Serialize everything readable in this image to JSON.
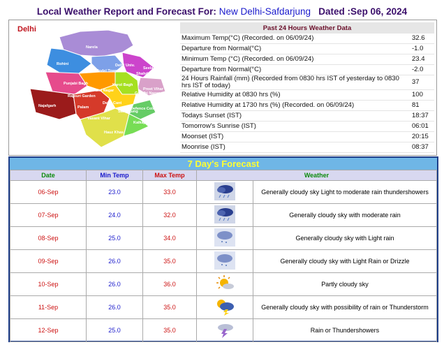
{
  "header": {
    "title": "Local Weather Report and Forecast For:",
    "station": "New Delhi-Safdarjung",
    "dated": "Dated :Sep 06, 2024"
  },
  "map": {
    "title": "Delhi",
    "labels": [
      "Narela",
      "Rohini",
      "Model Town",
      "Delhi Univ.",
      "Seelam Puri",
      "Shahdara",
      "Punjabi Bagh",
      "Karol Bagh",
      "Patel Nagar",
      "Gandhi Nagar",
      "Preet Vihar",
      "Rajouri Garden",
      "Delhi Cant",
      "Najafgarh",
      "Palam",
      "Vasant Vihar",
      "Defence Colony",
      "Safdarjung",
      "Kalkaji",
      "Hauz Khas"
    ]
  },
  "past": {
    "title": "Past 24 Hours Weather Data",
    "rows": [
      [
        "Maximum Temp(°C) (Recorded. on 06/09/24)",
        "32.6"
      ],
      [
        "Departure from Normal(°C)",
        "-1.0"
      ],
      [
        "Minimum Temp (°C) (Recorded. on 06/09/24)",
        "23.4"
      ],
      [
        "Departure from Normal(°C)",
        "-2.0"
      ],
      [
        "24 Hours Rainfall (mm) (Recorded from 0830 hrs IST of yesterday to 0830 hrs IST of today)",
        "37"
      ],
      [
        "Relative Humidity at 0830 hrs (%)",
        "100"
      ],
      [
        "Relative Humidity at 1730 hrs (%) (Recorded. on 06/09/24)",
        "81"
      ],
      [
        "Todays Sunset (IST)",
        "18:37"
      ],
      [
        "Tomorrow's Sunrise (IST)",
        "06:01"
      ],
      [
        "Moonset (IST)",
        "20:15"
      ],
      [
        "Moonrise (IST)",
        "08:37"
      ]
    ]
  },
  "forecast": {
    "title": "7 Day's Forecast",
    "columns": [
      "Date",
      "Min Temp",
      "Max Temp",
      "Weather"
    ],
    "rows": [
      [
        "06-Sep",
        "23.0",
        "33.0",
        "Generally cloudy sky Light to moderate rain thundershowers"
      ],
      [
        "07-Sep",
        "24.0",
        "32.0",
        "Generally cloudy sky with moderate rain"
      ],
      [
        "08-Sep",
        "25.0",
        "34.0",
        "Generally cloudy sky with Light rain"
      ],
      [
        "09-Sep",
        "26.0",
        "35.0",
        "Generally cloudy sky with Light Rain or Drizzle"
      ],
      [
        "10-Sep",
        "26.0",
        "36.0",
        "Partly cloudy sky"
      ],
      [
        "11-Sep",
        "26.0",
        "35.0",
        "Generally cloudy sky with possibility of rain or Thunderstorm"
      ],
      [
        "12-Sep",
        "25.0",
        "35.0",
        "Rain or Thundershowers"
      ]
    ]
  }
}
